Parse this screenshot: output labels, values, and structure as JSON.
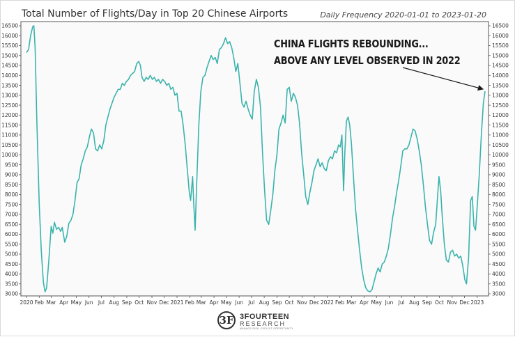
{
  "chart_data": {
    "type": "line",
    "title": "Total Number of Flights/Day in Top 20 Chinese Airports",
    "subtitle": "Daily Frequency 2020-01-01 to 2023-01-20",
    "annotation": [
      "CHINA FLIGHTS REBOUNDING...",
      "ABOVE ANY LEVEL OBSERVED IN 2022"
    ],
    "y_ticks": [
      3000,
      3500,
      4000,
      4500,
      5000,
      5500,
      6000,
      6500,
      7000,
      7500,
      8000,
      8500,
      9000,
      9500,
      10000,
      10500,
      11000,
      11500,
      12000,
      12500,
      13000,
      13500,
      14000,
      14500,
      15000,
      15500,
      16000,
      16500
    ],
    "ylim": [
      3000,
      16500
    ],
    "x_ticks": [
      {
        "label": "2020",
        "date": "2020-01-01"
      },
      {
        "label": "Feb",
        "date": "2020-02-01"
      },
      {
        "label": "Mar",
        "date": "2020-03-01"
      },
      {
        "label": "Apr",
        "date": "2020-04-01"
      },
      {
        "label": "May",
        "date": "2020-05-01"
      },
      {
        "label": "Jun",
        "date": "2020-06-01"
      },
      {
        "label": "Jul",
        "date": "2020-07-01"
      },
      {
        "label": "Aug",
        "date": "2020-08-01"
      },
      {
        "label": "Sep",
        "date": "2020-09-01"
      },
      {
        "label": "Oct",
        "date": "2020-10-01"
      },
      {
        "label": "Nov",
        "date": "2020-11-01"
      },
      {
        "label": "Dec",
        "date": "2020-12-01"
      },
      {
        "label": "2021",
        "date": "2021-01-01"
      },
      {
        "label": "Feb",
        "date": "2021-02-01"
      },
      {
        "label": "Mar",
        "date": "2021-03-01"
      },
      {
        "label": "Apr",
        "date": "2021-04-01"
      },
      {
        "label": "May",
        "date": "2021-05-01"
      },
      {
        "label": "Jun",
        "date": "2021-06-01"
      },
      {
        "label": "Jul",
        "date": "2021-07-01"
      },
      {
        "label": "Aug",
        "date": "2021-08-01"
      },
      {
        "label": "Sep",
        "date": "2021-09-01"
      },
      {
        "label": "Oct",
        "date": "2021-10-01"
      },
      {
        "label": "Nov",
        "date": "2021-11-01"
      },
      {
        "label": "Dec",
        "date": "2021-12-01"
      },
      {
        "label": "2022",
        "date": "2022-01-01"
      },
      {
        "label": "Feb",
        "date": "2022-02-01"
      },
      {
        "label": "Mar",
        "date": "2022-03-01"
      },
      {
        "label": "Apr",
        "date": "2022-04-01"
      },
      {
        "label": "May",
        "date": "2022-05-01"
      },
      {
        "label": "Jun",
        "date": "2022-06-01"
      },
      {
        "label": "Jul",
        "date": "2022-07-01"
      },
      {
        "label": "Aug",
        "date": "2022-08-01"
      },
      {
        "label": "Sep",
        "date": "2022-09-01"
      },
      {
        "label": "Oct",
        "date": "2022-10-01"
      },
      {
        "label": "Nov",
        "date": "2022-11-01"
      },
      {
        "label": "Dec",
        "date": "2022-12-01"
      },
      {
        "label": "2023",
        "date": "2023-01-01"
      }
    ],
    "xlim": [
      "2020-01-01",
      "2023-01-20"
    ],
    "series": [
      {
        "color": "#3bb3ad",
        "points": [
          [
            "2020-01-01",
            15150
          ],
          [
            "2020-01-06",
            15300
          ],
          [
            "2020-01-11",
            16000
          ],
          [
            "2020-01-16",
            16450
          ],
          [
            "2020-01-19",
            16500
          ],
          [
            "2020-01-22",
            15400
          ],
          [
            "2020-01-26",
            11800
          ],
          [
            "2020-02-01",
            7500
          ],
          [
            "2020-02-06",
            5200
          ],
          [
            "2020-02-11",
            3600
          ],
          [
            "2020-02-15",
            3100
          ],
          [
            "2020-02-19",
            3300
          ],
          [
            "2020-02-24",
            4600
          ],
          [
            "2020-03-01",
            6400
          ],
          [
            "2020-03-05",
            6050
          ],
          [
            "2020-03-09",
            6600
          ],
          [
            "2020-03-14",
            6250
          ],
          [
            "2020-03-19",
            6350
          ],
          [
            "2020-03-24",
            6150
          ],
          [
            "2020-03-28",
            6350
          ],
          [
            "2020-04-03",
            5600
          ],
          [
            "2020-04-08",
            5900
          ],
          [
            "2020-04-13",
            6550
          ],
          [
            "2020-04-18",
            6700
          ],
          [
            "2020-04-23",
            7000
          ],
          [
            "2020-04-28",
            7700
          ],
          [
            "2020-05-03",
            8600
          ],
          [
            "2020-05-08",
            8800
          ],
          [
            "2020-05-13",
            9500
          ],
          [
            "2020-05-18",
            9800
          ],
          [
            "2020-05-23",
            10200
          ],
          [
            "2020-05-28",
            10400
          ],
          [
            "2020-06-02",
            10900
          ],
          [
            "2020-06-07",
            11300
          ],
          [
            "2020-06-12",
            11100
          ],
          [
            "2020-06-17",
            10300
          ],
          [
            "2020-06-22",
            10200
          ],
          [
            "2020-06-27",
            10500
          ],
          [
            "2020-07-02",
            10300
          ],
          [
            "2020-07-07",
            10700
          ],
          [
            "2020-07-12",
            11500
          ],
          [
            "2020-07-17",
            11900
          ],
          [
            "2020-07-22",
            12300
          ],
          [
            "2020-07-27",
            12600
          ],
          [
            "2020-08-01",
            12900
          ],
          [
            "2020-08-06",
            13100
          ],
          [
            "2020-08-11",
            13300
          ],
          [
            "2020-08-16",
            13300
          ],
          [
            "2020-08-21",
            13600
          ],
          [
            "2020-08-26",
            13500
          ],
          [
            "2020-08-31",
            13700
          ],
          [
            "2020-09-05",
            13800
          ],
          [
            "2020-09-10",
            14000
          ],
          [
            "2020-09-15",
            14100
          ],
          [
            "2020-09-20",
            14200
          ],
          [
            "2020-09-25",
            14600
          ],
          [
            "2020-09-30",
            14700
          ],
          [
            "2020-10-04",
            14500
          ],
          [
            "2020-10-08",
            13900
          ],
          [
            "2020-10-13",
            13700
          ],
          [
            "2020-10-18",
            13900
          ],
          [
            "2020-10-23",
            13800
          ],
          [
            "2020-10-28",
            14000
          ],
          [
            "2020-11-02",
            13800
          ],
          [
            "2020-11-07",
            13900
          ],
          [
            "2020-11-12",
            13700
          ],
          [
            "2020-11-17",
            13800
          ],
          [
            "2020-11-22",
            13600
          ],
          [
            "2020-11-27",
            13800
          ],
          [
            "2020-12-02",
            13700
          ],
          [
            "2020-12-07",
            13500
          ],
          [
            "2020-12-12",
            13600
          ],
          [
            "2020-12-17",
            13300
          ],
          [
            "2020-12-22",
            13400
          ],
          [
            "2020-12-27",
            13000
          ],
          [
            "2021-01-01",
            13100
          ],
          [
            "2021-01-06",
            12200
          ],
          [
            "2021-01-11",
            12200
          ],
          [
            "2021-01-16",
            11500
          ],
          [
            "2021-01-21",
            10500
          ],
          [
            "2021-01-26",
            9300
          ],
          [
            "2021-01-31",
            8100
          ],
          [
            "2021-02-03",
            7700
          ],
          [
            "2021-02-08",
            8900
          ],
          [
            "2021-02-11",
            7400
          ],
          [
            "2021-02-14",
            6200
          ],
          [
            "2021-02-18",
            8600
          ],
          [
            "2021-02-23",
            11500
          ],
          [
            "2021-02-28",
            13200
          ],
          [
            "2021-03-05",
            13900
          ],
          [
            "2021-03-10",
            14000
          ],
          [
            "2021-03-15",
            14400
          ],
          [
            "2021-03-20",
            14700
          ],
          [
            "2021-03-25",
            15000
          ],
          [
            "2021-03-30",
            14800
          ],
          [
            "2021-04-04",
            14900
          ],
          [
            "2021-04-09",
            14600
          ],
          [
            "2021-04-14",
            15300
          ],
          [
            "2021-04-19",
            15400
          ],
          [
            "2021-04-24",
            15600
          ],
          [
            "2021-04-29",
            15900
          ],
          [
            "2021-05-04",
            15600
          ],
          [
            "2021-05-09",
            15700
          ],
          [
            "2021-05-14",
            15400
          ],
          [
            "2021-05-19",
            14900
          ],
          [
            "2021-05-24",
            14200
          ],
          [
            "2021-05-29",
            14600
          ],
          [
            "2021-06-03",
            13600
          ],
          [
            "2021-06-08",
            12600
          ],
          [
            "2021-06-13",
            12400
          ],
          [
            "2021-06-18",
            12700
          ],
          [
            "2021-06-23",
            12300
          ],
          [
            "2021-06-28",
            12000
          ],
          [
            "2021-07-03",
            11800
          ],
          [
            "2021-07-08",
            13200
          ],
          [
            "2021-07-13",
            13800
          ],
          [
            "2021-07-18",
            13400
          ],
          [
            "2021-07-23",
            12400
          ],
          [
            "2021-07-28",
            10100
          ],
          [
            "2021-08-02",
            8200
          ],
          [
            "2021-08-07",
            6700
          ],
          [
            "2021-08-12",
            6500
          ],
          [
            "2021-08-17",
            7200
          ],
          [
            "2021-08-22",
            8000
          ],
          [
            "2021-08-27",
            9200
          ],
          [
            "2021-09-01",
            10000
          ],
          [
            "2021-09-06",
            11300
          ],
          [
            "2021-09-11",
            11600
          ],
          [
            "2021-09-16",
            12000
          ],
          [
            "2021-09-21",
            11600
          ],
          [
            "2021-09-26",
            13300
          ],
          [
            "2021-10-01",
            13400
          ],
          [
            "2021-10-06",
            12700
          ],
          [
            "2021-10-11",
            13100
          ],
          [
            "2021-10-16",
            12900
          ],
          [
            "2021-10-21",
            12500
          ],
          [
            "2021-10-26",
            11600
          ],
          [
            "2021-10-31",
            10100
          ],
          [
            "2021-11-05",
            9000
          ],
          [
            "2021-11-10",
            7900
          ],
          [
            "2021-11-15",
            7500
          ],
          [
            "2021-11-20",
            8100
          ],
          [
            "2021-11-25",
            8600
          ],
          [
            "2021-11-30",
            9200
          ],
          [
            "2021-12-05",
            9500
          ],
          [
            "2021-12-10",
            9800
          ],
          [
            "2021-12-15",
            9400
          ],
          [
            "2021-12-20",
            9600
          ],
          [
            "2021-12-25",
            9300
          ],
          [
            "2021-12-30",
            9200
          ],
          [
            "2022-01-04",
            9700
          ],
          [
            "2022-01-09",
            9900
          ],
          [
            "2022-01-14",
            9800
          ],
          [
            "2022-01-19",
            10200
          ],
          [
            "2022-01-24",
            10100
          ],
          [
            "2022-01-29",
            10500
          ],
          [
            "2022-02-02",
            10400
          ],
          [
            "2022-02-06",
            11000
          ],
          [
            "2022-02-10",
            8200
          ],
          [
            "2022-02-13",
            10100
          ],
          [
            "2022-02-17",
            11700
          ],
          [
            "2022-02-21",
            11900
          ],
          [
            "2022-02-25",
            11500
          ],
          [
            "2022-03-01",
            10600
          ],
          [
            "2022-03-06",
            8900
          ],
          [
            "2022-03-11",
            7300
          ],
          [
            "2022-03-16",
            6200
          ],
          [
            "2022-03-21",
            5200
          ],
          [
            "2022-03-26",
            4300
          ],
          [
            "2022-03-31",
            3700
          ],
          [
            "2022-04-05",
            3300
          ],
          [
            "2022-04-10",
            3150
          ],
          [
            "2022-04-15",
            3100
          ],
          [
            "2022-04-20",
            3200
          ],
          [
            "2022-04-25",
            3600
          ],
          [
            "2022-04-30",
            4000
          ],
          [
            "2022-05-05",
            4300
          ],
          [
            "2022-05-10",
            4100
          ],
          [
            "2022-05-15",
            4500
          ],
          [
            "2022-05-20",
            4600
          ],
          [
            "2022-05-25",
            4900
          ],
          [
            "2022-05-30",
            5300
          ],
          [
            "2022-06-04",
            6000
          ],
          [
            "2022-06-09",
            6800
          ],
          [
            "2022-06-14",
            7400
          ],
          [
            "2022-06-19",
            8100
          ],
          [
            "2022-06-24",
            8700
          ],
          [
            "2022-06-29",
            9400
          ],
          [
            "2022-07-04",
            10200
          ],
          [
            "2022-07-09",
            10300
          ],
          [
            "2022-07-14",
            10300
          ],
          [
            "2022-07-19",
            10500
          ],
          [
            "2022-07-24",
            10900
          ],
          [
            "2022-07-29",
            11300
          ],
          [
            "2022-08-03",
            11200
          ],
          [
            "2022-08-08",
            10800
          ],
          [
            "2022-08-13",
            10200
          ],
          [
            "2022-08-18",
            9500
          ],
          [
            "2022-08-23",
            8500
          ],
          [
            "2022-08-28",
            7400
          ],
          [
            "2022-09-02",
            6500
          ],
          [
            "2022-09-07",
            5700
          ],
          [
            "2022-09-12",
            5500
          ],
          [
            "2022-09-17",
            6100
          ],
          [
            "2022-09-22",
            6500
          ],
          [
            "2022-09-27",
            8000
          ],
          [
            "2022-09-30",
            8900
          ],
          [
            "2022-10-04",
            8200
          ],
          [
            "2022-10-08",
            6900
          ],
          [
            "2022-10-13",
            5500
          ],
          [
            "2022-10-18",
            4700
          ],
          [
            "2022-10-23",
            4600
          ],
          [
            "2022-10-28",
            5100
          ],
          [
            "2022-11-02",
            5200
          ],
          [
            "2022-11-07",
            4900
          ],
          [
            "2022-11-12",
            5000
          ],
          [
            "2022-11-17",
            4800
          ],
          [
            "2022-11-22",
            4900
          ],
          [
            "2022-11-27",
            4400
          ],
          [
            "2022-12-02",
            3700
          ],
          [
            "2022-12-06",
            3500
          ],
          [
            "2022-12-11",
            4800
          ],
          [
            "2022-12-16",
            7700
          ],
          [
            "2022-12-20",
            7900
          ],
          [
            "2022-12-24",
            6400
          ],
          [
            "2022-12-28",
            6200
          ],
          [
            "2023-01-01",
            7400
          ],
          [
            "2023-01-06",
            9000
          ],
          [
            "2023-01-11",
            11000
          ],
          [
            "2023-01-16",
            12600
          ],
          [
            "2023-01-20",
            13200
          ]
        ]
      }
    ]
  },
  "branding": {
    "logo_mark": "3F",
    "name": "3FOURTEEN",
    "sub": "RESEARCH",
    "tag": "MANAGE RISK. EXPLOIT OPPORTUNITY"
  }
}
